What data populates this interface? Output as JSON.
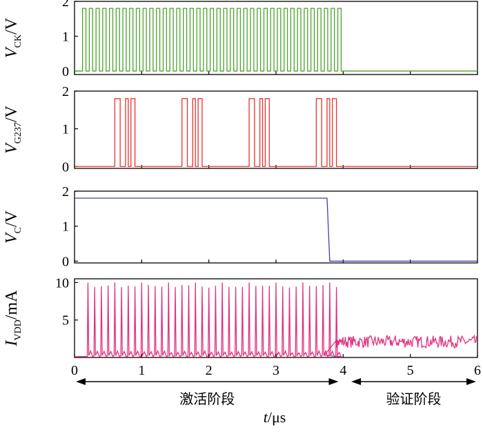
{
  "chart_data": {
    "type": "line",
    "x_unit_label": {
      "var": "t",
      "unit": "/μs"
    },
    "xlim": [
      0,
      6
    ],
    "x_ticks": [
      0,
      1,
      2,
      3,
      4,
      5,
      6
    ],
    "phases": [
      {
        "label": "激活阶段",
        "from": 0,
        "to": 3.95
      },
      {
        "label": "验证阶段",
        "from": 4.1,
        "to": 6
      }
    ],
    "panels": [
      {
        "id": "vck",
        "ylabel_main": "V",
        "ylabel_sub": "CK",
        "ylabel_unit": "/V",
        "ylim": [
          -0.1,
          2.0
        ],
        "y_ticks": [
          0,
          1,
          2
        ],
        "color": "#4aa12a",
        "waveform": {
          "kind": "clock",
          "high": 1.8,
          "low": 0,
          "start": 0.12,
          "stop": 4.0,
          "period": 0.1
        }
      },
      {
        "id": "vg237",
        "ylabel_main": "V",
        "ylabel_sub": "G237",
        "ylabel_unit": "/V",
        "ylim": [
          -0.05,
          2.0
        ],
        "y_ticks": [
          0,
          1,
          2
        ],
        "color": "#e8312b",
        "waveform": {
          "kind": "pulses",
          "high": 1.8,
          "low": 0,
          "pulses": [
            [
              0.6,
              0.68
            ],
            [
              0.76,
              0.8
            ],
            [
              0.84,
              0.9
            ],
            [
              1.6,
              1.68
            ],
            [
              1.76,
              1.8
            ],
            [
              1.84,
              1.9
            ],
            [
              2.6,
              2.68
            ],
            [
              2.76,
              2.8
            ],
            [
              2.84,
              2.9
            ],
            [
              3.6,
              3.68
            ],
            [
              3.76,
              3.8
            ],
            [
              3.84,
              3.9
            ]
          ]
        }
      },
      {
        "id": "vc",
        "ylabel_main": "V",
        "ylabel_sub": "C",
        "ylabel_unit": "/V",
        "ylim": [
          -0.05,
          2.0
        ],
        "y_ticks": [
          0,
          1,
          2
        ],
        "color": "#3f3fa8",
        "waveform": {
          "kind": "step",
          "high": 1.8,
          "low": 0,
          "fall_start": 3.76,
          "fall_end": 3.8
        }
      },
      {
        "id": "ivdd",
        "ylabel_main": "I",
        "ylabel_sub": "VDD",
        "ylabel_unit": "/mA",
        "ylim": [
          0,
          10.5
        ],
        "y_ticks": [
          5,
          10
        ],
        "color": "#e0307e",
        "waveform": {
          "kind": "current",
          "spike_start": 0.2,
          "spike_stop": 4.0,
          "spike_period": 0.1,
          "spike_high": 10,
          "spike_low": 9.3,
          "after_level": 2.1,
          "after_noise": 0.8
        }
      }
    ]
  }
}
